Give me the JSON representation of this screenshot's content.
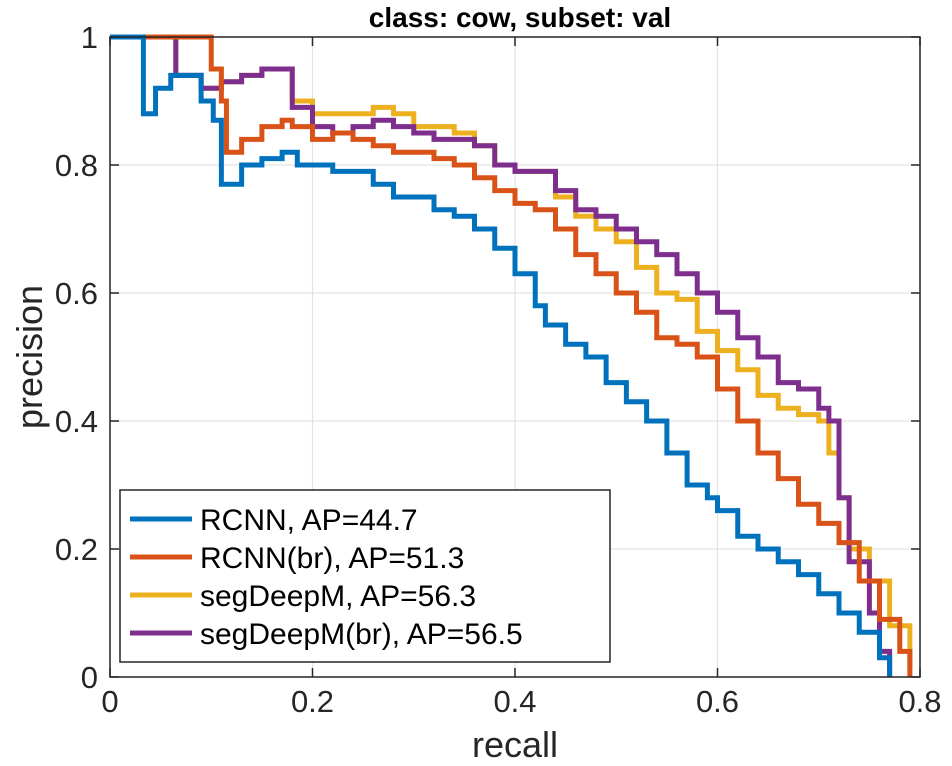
{
  "chart_data": {
    "type": "line",
    "title": "class: cow, subset: val",
    "xlabel": "recall",
    "ylabel": "precision",
    "xlim": [
      0,
      0.8
    ],
    "ylim": [
      0,
      1
    ],
    "xticks": [
      0,
      0.2,
      0.4,
      0.6,
      0.8
    ],
    "yticks": [
      0,
      0.2,
      0.4,
      0.6,
      0.8,
      1
    ],
    "xtick_labels": [
      "0",
      "0.2",
      "0.4",
      "0.6",
      "0.8"
    ],
    "ytick_labels": [
      "0",
      "0.2",
      "0.4",
      "0.6",
      "0.8",
      "1"
    ],
    "grid": true,
    "legend_position": "bottom-left",
    "series": [
      {
        "name": "RCNN, AP=44.7",
        "color": "#0072BD",
        "x": [
          0.0,
          0.033,
          0.033,
          0.045,
          0.06,
          0.075,
          0.09,
          0.102,
          0.11,
          0.11,
          0.13,
          0.15,
          0.17,
          0.185,
          0.2,
          0.22,
          0.24,
          0.26,
          0.28,
          0.3,
          0.32,
          0.34,
          0.36,
          0.38,
          0.4,
          0.42,
          0.43,
          0.45,
          0.47,
          0.49,
          0.51,
          0.53,
          0.55,
          0.57,
          0.59,
          0.6,
          0.62,
          0.64,
          0.66,
          0.68,
          0.7,
          0.72,
          0.74,
          0.76,
          0.77
        ],
        "y": [
          1.0,
          1.0,
          0.88,
          0.92,
          0.94,
          0.94,
          0.9,
          0.87,
          0.86,
          0.77,
          0.8,
          0.81,
          0.82,
          0.8,
          0.8,
          0.79,
          0.79,
          0.77,
          0.75,
          0.75,
          0.73,
          0.72,
          0.7,
          0.67,
          0.63,
          0.58,
          0.55,
          0.52,
          0.5,
          0.46,
          0.43,
          0.4,
          0.35,
          0.3,
          0.28,
          0.26,
          0.22,
          0.2,
          0.18,
          0.16,
          0.13,
          0.1,
          0.07,
          0.03,
          0.0
        ]
      },
      {
        "name": "RCNN(br), AP=51.3",
        "color": "#D95319",
        "x": [
          0.0,
          0.1,
          0.1,
          0.11,
          0.11,
          0.115,
          0.13,
          0.15,
          0.17,
          0.18,
          0.2,
          0.22,
          0.24,
          0.26,
          0.28,
          0.3,
          0.32,
          0.34,
          0.36,
          0.38,
          0.4,
          0.42,
          0.44,
          0.46,
          0.48,
          0.5,
          0.52,
          0.54,
          0.56,
          0.58,
          0.6,
          0.62,
          0.64,
          0.66,
          0.68,
          0.7,
          0.72,
          0.74,
          0.76,
          0.78,
          0.79
        ],
        "y": [
          1.0,
          1.0,
          0.95,
          0.93,
          0.9,
          0.82,
          0.84,
          0.86,
          0.87,
          0.86,
          0.84,
          0.85,
          0.84,
          0.83,
          0.82,
          0.82,
          0.81,
          0.8,
          0.78,
          0.76,
          0.74,
          0.73,
          0.7,
          0.66,
          0.63,
          0.6,
          0.57,
          0.53,
          0.52,
          0.5,
          0.45,
          0.4,
          0.35,
          0.31,
          0.27,
          0.24,
          0.21,
          0.15,
          0.09,
          0.04,
          0.0
        ]
      },
      {
        "name": "segDeepM, AP=56.3",
        "color": "#EDB120",
        "x": [
          0.0,
          0.065,
          0.065,
          0.09,
          0.11,
          0.13,
          0.15,
          0.175,
          0.18,
          0.2,
          0.22,
          0.24,
          0.26,
          0.28,
          0.3,
          0.32,
          0.34,
          0.36,
          0.38,
          0.4,
          0.42,
          0.44,
          0.46,
          0.48,
          0.5,
          0.52,
          0.54,
          0.56,
          0.58,
          0.6,
          0.62,
          0.64,
          0.66,
          0.68,
          0.7,
          0.71,
          0.72,
          0.73,
          0.75,
          0.77,
          0.79
        ],
        "y": [
          1.0,
          1.0,
          0.94,
          0.92,
          0.93,
          0.94,
          0.95,
          0.95,
          0.9,
          0.88,
          0.88,
          0.88,
          0.89,
          0.88,
          0.86,
          0.86,
          0.85,
          0.83,
          0.8,
          0.79,
          0.79,
          0.75,
          0.72,
          0.7,
          0.68,
          0.64,
          0.6,
          0.59,
          0.54,
          0.51,
          0.48,
          0.44,
          0.42,
          0.41,
          0.4,
          0.35,
          0.28,
          0.2,
          0.15,
          0.08,
          0.01
        ]
      },
      {
        "name": "segDeepM(br), AP=56.5",
        "color": "#7E2F8E",
        "x": [
          0.0,
          0.065,
          0.065,
          0.09,
          0.11,
          0.13,
          0.15,
          0.175,
          0.18,
          0.2,
          0.22,
          0.24,
          0.26,
          0.28,
          0.3,
          0.32,
          0.34,
          0.36,
          0.38,
          0.4,
          0.42,
          0.44,
          0.46,
          0.48,
          0.5,
          0.52,
          0.54,
          0.56,
          0.58,
          0.6,
          0.62,
          0.64,
          0.66,
          0.68,
          0.7,
          0.71,
          0.72,
          0.73,
          0.75,
          0.76,
          0.77
        ],
        "y": [
          1.0,
          1.0,
          0.94,
          0.92,
          0.93,
          0.94,
          0.95,
          0.95,
          0.89,
          0.86,
          0.85,
          0.86,
          0.87,
          0.86,
          0.85,
          0.84,
          0.84,
          0.83,
          0.8,
          0.79,
          0.79,
          0.76,
          0.73,
          0.72,
          0.7,
          0.68,
          0.66,
          0.63,
          0.6,
          0.57,
          0.53,
          0.5,
          0.46,
          0.45,
          0.42,
          0.4,
          0.28,
          0.18,
          0.1,
          0.04,
          0.0
        ]
      }
    ]
  }
}
